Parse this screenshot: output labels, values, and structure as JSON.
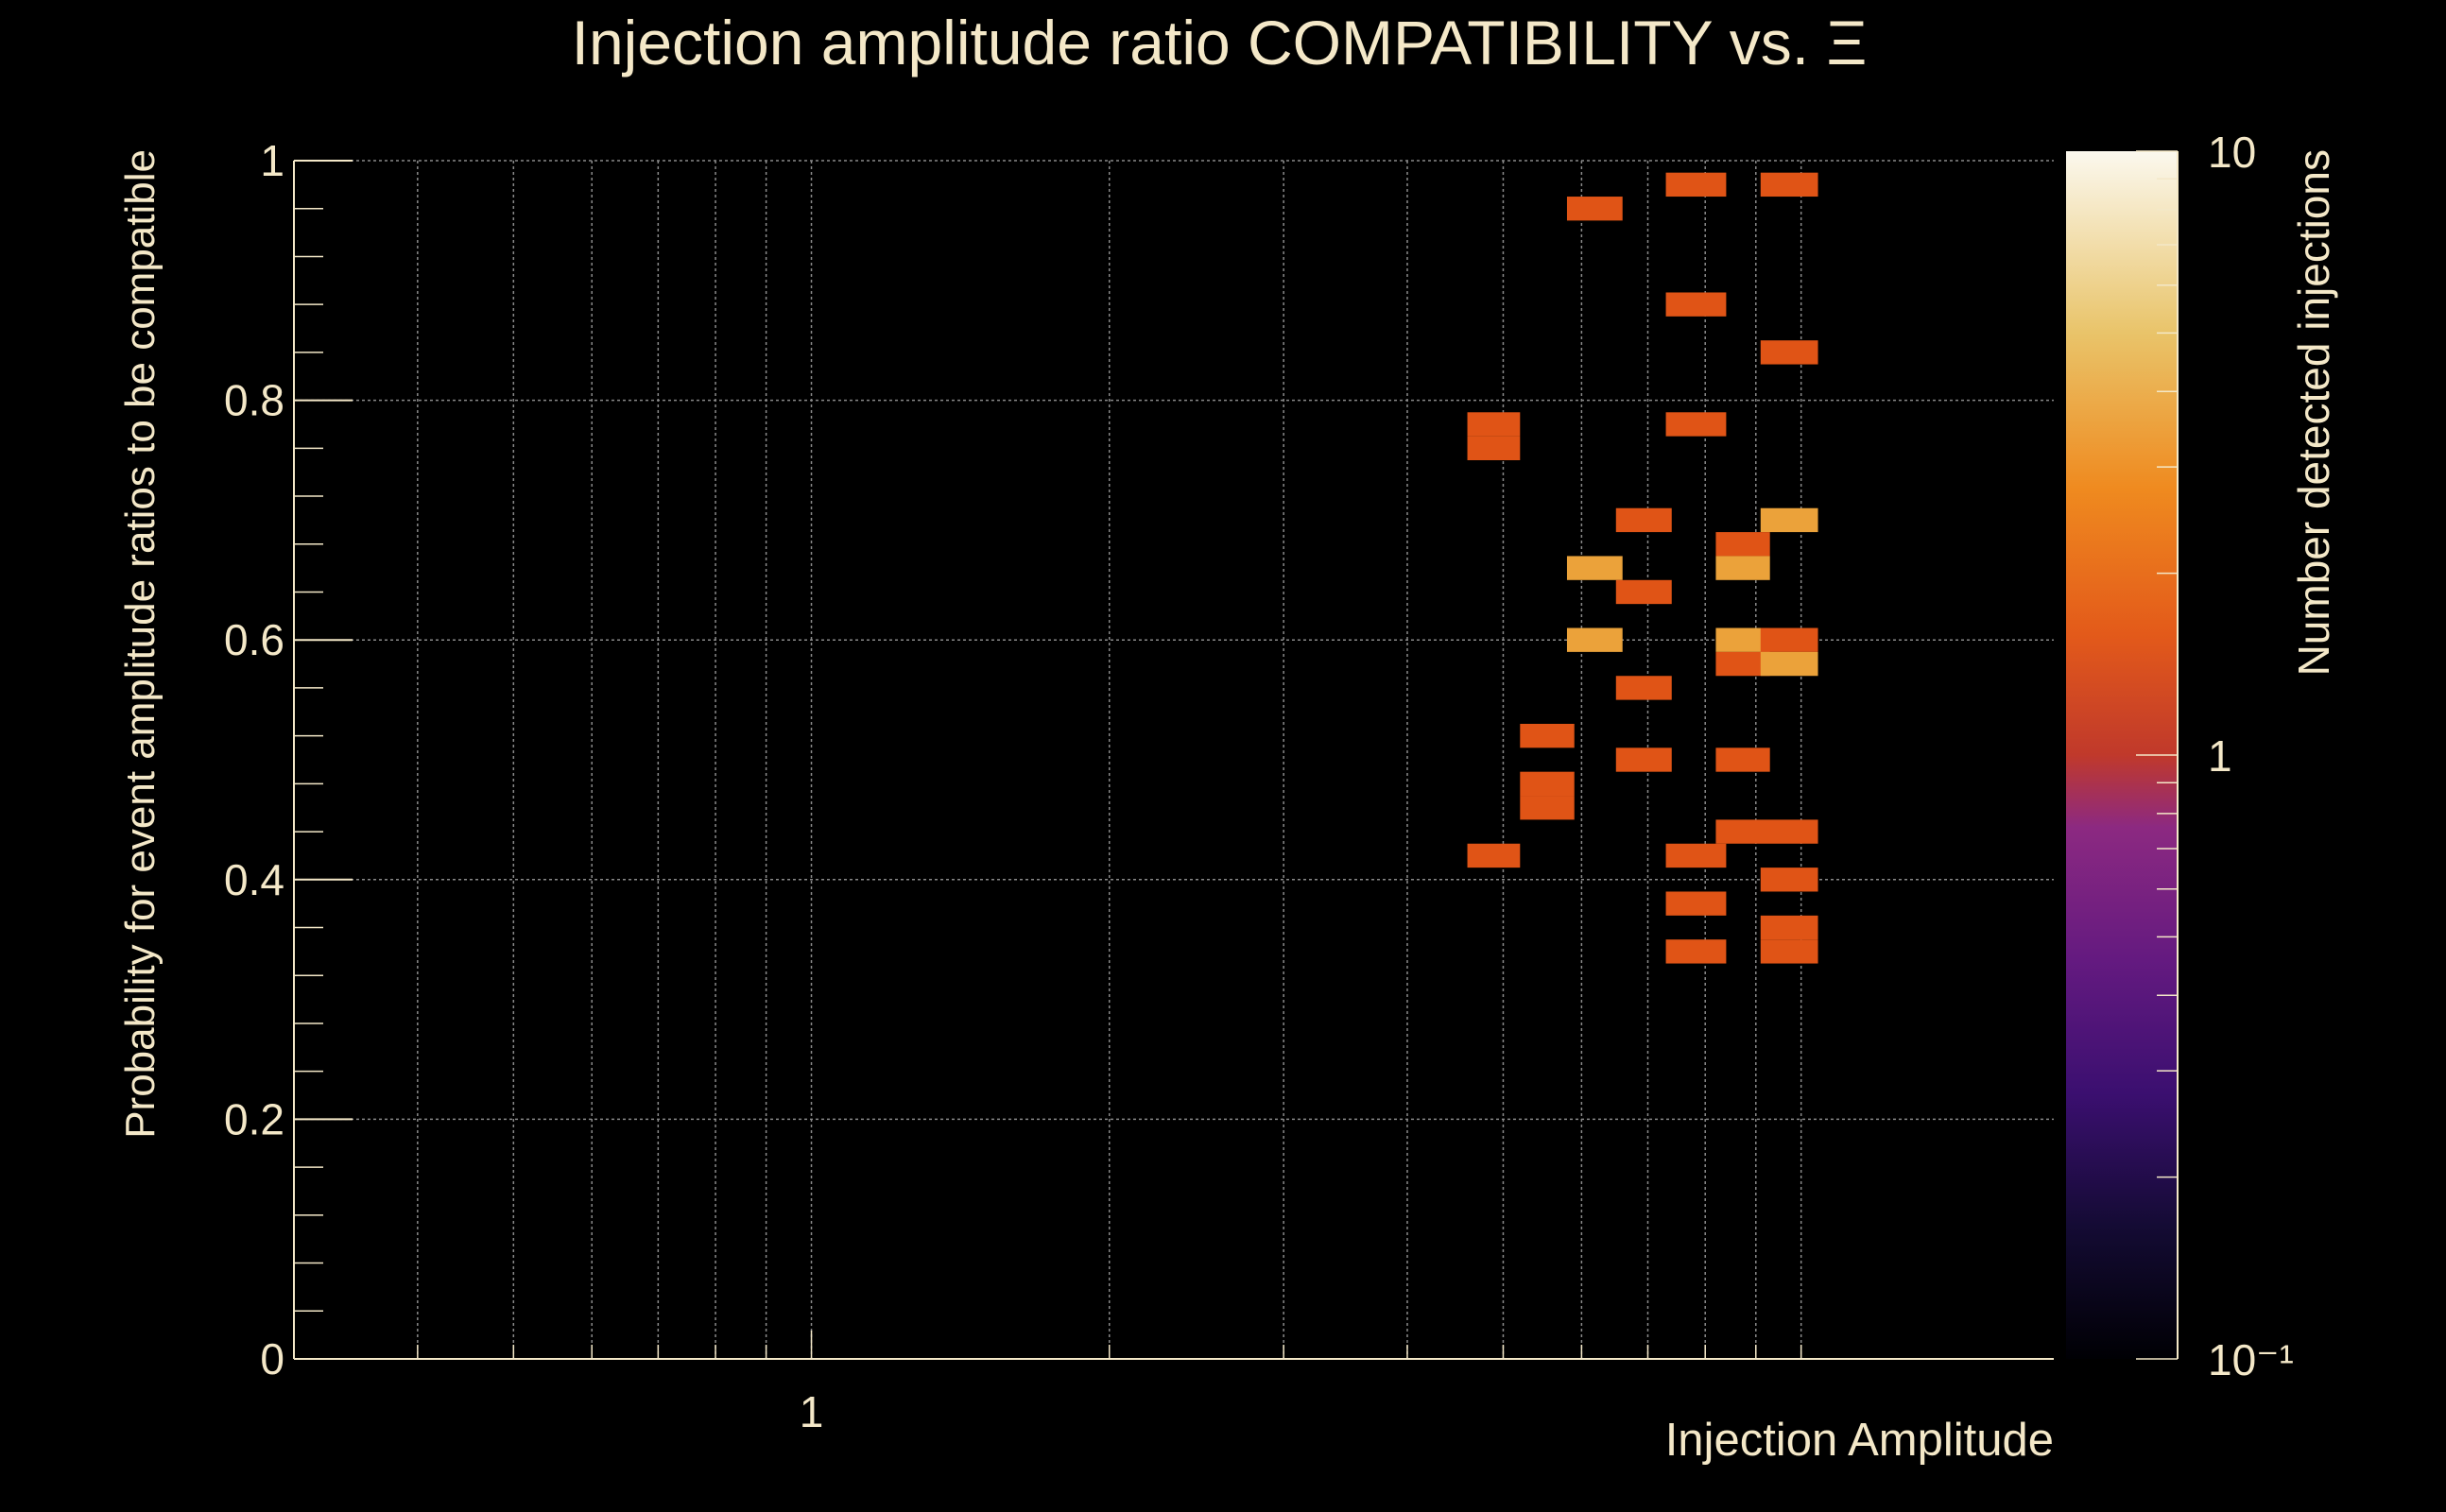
{
  "chart_data": {
    "type": "heatmap",
    "title": "Injection amplitude ratio COMPATIBILITY vs.  Ξ",
    "xlabel": "Injection Amplitude",
    "ylabel": "Probability for event amplitude ratios to be compatible",
    "zlabel": "Number detected injections",
    "x_scale": "log",
    "xlim": [
      0.3,
      18
    ],
    "ylim": [
      0,
      1
    ],
    "x_tick_labels": [
      {
        "value": 1,
        "label": "1"
      }
    ],
    "y_tick_labels": [
      {
        "value": 0,
        "label": "0"
      },
      {
        "value": 0.2,
        "label": "0.2"
      },
      {
        "value": 0.4,
        "label": "0.4"
      },
      {
        "value": 0.6,
        "label": "0.6"
      },
      {
        "value": 0.8,
        "label": "0.8"
      },
      {
        "value": 1,
        "label": "1"
      }
    ],
    "z_scale": "log",
    "zlim": [
      0.1,
      10
    ],
    "z_tick_labels": [
      {
        "value": 10,
        "label": "10"
      },
      {
        "value": 1,
        "label": "1"
      },
      {
        "value": 0.1,
        "label": "10⁻¹"
      }
    ],
    "bin_height": 0.02,
    "cells": [
      {
        "x0": 5.8,
        "x1": 6.6,
        "y": 0.96,
        "count": 1
      },
      {
        "x0": 7.3,
        "x1": 8.4,
        "y": 0.98,
        "count": 1
      },
      {
        "x0": 9.1,
        "x1": 10.4,
        "y": 0.98,
        "count": 1
      },
      {
        "x0": 7.3,
        "x1": 8.4,
        "y": 0.88,
        "count": 1
      },
      {
        "x0": 9.1,
        "x1": 10.4,
        "y": 0.84,
        "count": 1
      },
      {
        "x0": 7.3,
        "x1": 8.4,
        "y": 0.78,
        "count": 1
      },
      {
        "x0": 4.6,
        "x1": 5.2,
        "y": 0.78,
        "count": 1
      },
      {
        "x0": 4.6,
        "x1": 5.2,
        "y": 0.76,
        "count": 1
      },
      {
        "x0": 6.5,
        "x1": 7.4,
        "y": 0.7,
        "count": 1
      },
      {
        "x0": 9.1,
        "x1": 10.4,
        "y": 0.7,
        "count": 2
      },
      {
        "x0": 8.2,
        "x1": 9.3,
        "y": 0.68,
        "count": 1
      },
      {
        "x0": 5.8,
        "x1": 6.6,
        "y": 0.66,
        "count": 2
      },
      {
        "x0": 8.2,
        "x1": 9.3,
        "y": 0.66,
        "count": 2
      },
      {
        "x0": 6.5,
        "x1": 7.4,
        "y": 0.64,
        "count": 1
      },
      {
        "x0": 5.8,
        "x1": 6.6,
        "y": 0.6,
        "count": 2
      },
      {
        "x0": 8.2,
        "x1": 9.3,
        "y": 0.6,
        "count": 2
      },
      {
        "x0": 9.1,
        "x1": 10.4,
        "y": 0.6,
        "count": 1
      },
      {
        "x0": 8.2,
        "x1": 9.3,
        "y": 0.58,
        "count": 1
      },
      {
        "x0": 9.1,
        "x1": 10.4,
        "y": 0.58,
        "count": 2
      },
      {
        "x0": 6.5,
        "x1": 7.4,
        "y": 0.56,
        "count": 1
      },
      {
        "x0": 5.2,
        "x1": 5.9,
        "y": 0.52,
        "count": 1
      },
      {
        "x0": 6.5,
        "x1": 7.4,
        "y": 0.5,
        "count": 1
      },
      {
        "x0": 8.2,
        "x1": 9.3,
        "y": 0.5,
        "count": 1
      },
      {
        "x0": 5.2,
        "x1": 5.9,
        "y": 0.48,
        "count": 1
      },
      {
        "x0": 5.2,
        "x1": 5.9,
        "y": 0.46,
        "count": 1
      },
      {
        "x0": 8.2,
        "x1": 10.4,
        "y": 0.44,
        "count": 1
      },
      {
        "x0": 4.6,
        "x1": 5.2,
        "y": 0.42,
        "count": 1
      },
      {
        "x0": 7.3,
        "x1": 8.4,
        "y": 0.42,
        "count": 1
      },
      {
        "x0": 9.1,
        "x1": 10.4,
        "y": 0.4,
        "count": 1
      },
      {
        "x0": 7.3,
        "x1": 8.4,
        "y": 0.38,
        "count": 1
      },
      {
        "x0": 9.1,
        "x1": 10.4,
        "y": 0.36,
        "count": 1
      },
      {
        "x0": 7.3,
        "x1": 8.4,
        "y": 0.34,
        "count": 1
      },
      {
        "x0": 9.1,
        "x1": 10.4,
        "y": 0.34,
        "count": 1
      }
    ],
    "colormap": [
      "#000004",
      "#1b0c41",
      "#4a0c6b",
      "#781c6d",
      "#a52c60",
      "#cf4446",
      "#ed6925",
      "#fb9b06",
      "#f7d13d",
      "#fcffa4"
    ]
  }
}
